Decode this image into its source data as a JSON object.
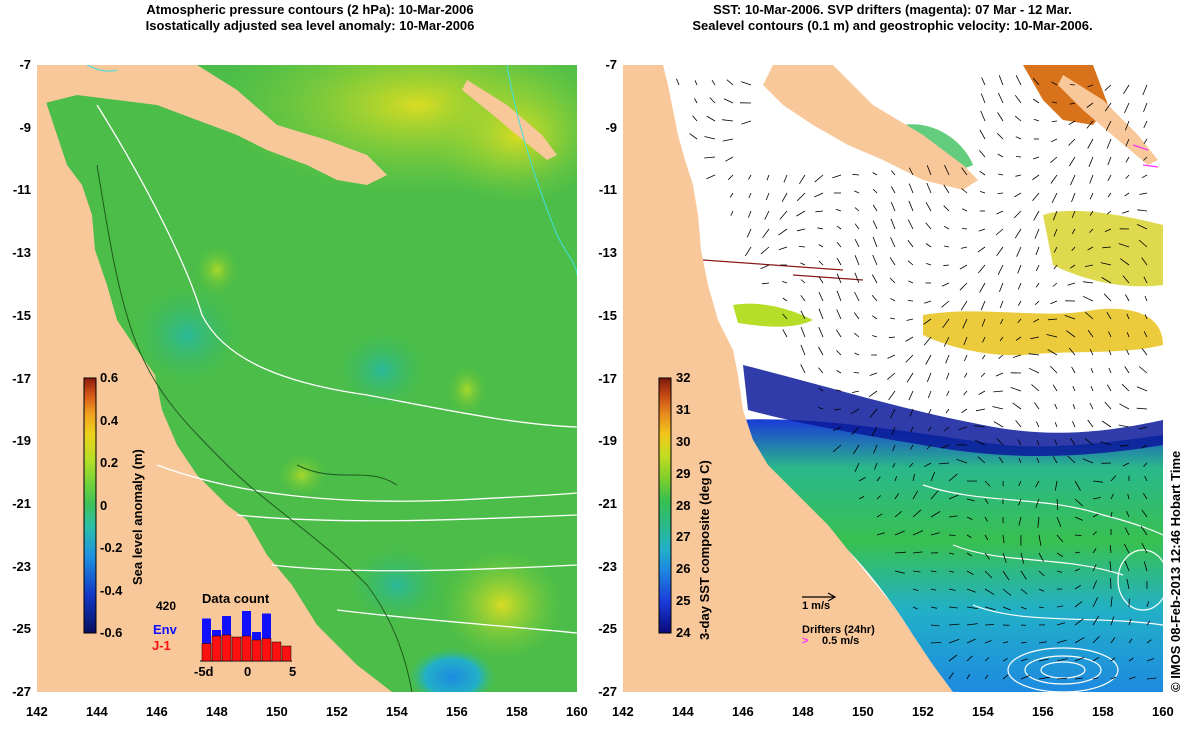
{
  "left_panel": {
    "title_line1": "Atmospheric pressure contours (2 hPa): 10-Mar-2006",
    "title_line2": "Isostatically adjusted sea level anomaly: 10-Mar-2006",
    "colorbar": {
      "label": "Sea level anomaly (m)",
      "ticks": [
        "0.6",
        "0.4",
        "0.2",
        "0",
        "-0.2",
        "-0.4",
        "-0.6"
      ],
      "colors": [
        "#08105e",
        "#1238c8",
        "#1e90e0",
        "#2ec0a8",
        "#3cbf5c",
        "#6ed13c",
        "#b6dd28",
        "#ecd11a",
        "#f0a020",
        "#d85a18",
        "#8a1a0a"
      ]
    },
    "data_count": {
      "title": "Data count",
      "y_max_label": "420",
      "legend_env": "Env",
      "legend_j1": "J-1",
      "x_labels": [
        "-5d",
        "0",
        "5"
      ],
      "env_color": "#1010ff",
      "j1_color": "#ff1010",
      "env_values": [
        0.85,
        0.62,
        0.9,
        0.35,
        1.0,
        0.58,
        0.95,
        0.3,
        0.0
      ],
      "j1_values": [
        0.35,
        0.5,
        0.52,
        0.48,
        0.5,
        0.42,
        0.45,
        0.38,
        0.3
      ]
    }
  },
  "right_panel": {
    "title_line1": "SST: 10-Mar-2006. SVP drifters (magenta): 07 Mar - 12 Mar.",
    "title_line2": "Sealevel contours (0.1 m) and geostrophic velocity: 10-Mar-2006.",
    "colorbar": {
      "label": "3-day SST composite (deg C)",
      "ticks": [
        "32",
        "31",
        "30",
        "29",
        "28",
        "27",
        "26",
        "25",
        "24"
      ],
      "colors": [
        "#0a0a7a",
        "#1a3ad8",
        "#1e8ae0",
        "#22b0c8",
        "#2ab88a",
        "#38c050",
        "#7ace2c",
        "#c6dc22",
        "#f2c61a",
        "#e88a1e",
        "#c84a14",
        "#7a1a0a"
      ]
    },
    "scale_arrow_label": "1 m/s",
    "drifters_label": "Drifters (24hr)",
    "drifters_speed_label": "0.5 m/s",
    "drifter_color": "#ff30ff"
  },
  "axes": {
    "y_ticks": [
      "-7",
      "-9",
      "-11",
      "-13",
      "-15",
      "-17",
      "-19",
      "-21",
      "-23",
      "-25",
      "-27"
    ],
    "x_ticks": [
      "142",
      "144",
      "146",
      "148",
      "150",
      "152",
      "154",
      "156",
      "158",
      "160"
    ],
    "lon_range": [
      142,
      160
    ],
    "lat_range": [
      -27,
      -7
    ]
  },
  "colors": {
    "land": "#f9c89a",
    "ocean_green": "#54c03c",
    "no_data": "#ffffff"
  },
  "credit": "© IMOS 08-Feb-2013 12:46 Hobart Time"
}
